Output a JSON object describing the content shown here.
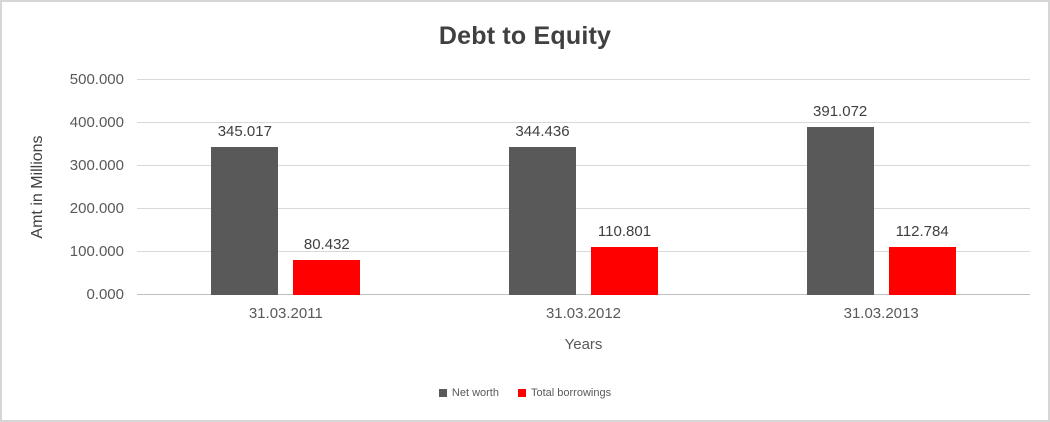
{
  "chart_data": {
    "type": "bar",
    "title": "Debt to Equity",
    "xlabel": "Years",
    "ylabel": "Amt in Millions",
    "categories": [
      "31.03.2011",
      "31.03.2012",
      "31.03.2013"
    ],
    "series": [
      {
        "name": "Net worth",
        "color": "#595959",
        "values": [
          345.017,
          344.436,
          391.072
        ],
        "value_labels": [
          "345.017",
          "344.436",
          "391.072"
        ]
      },
      {
        "name": "Total borrowings",
        "color": "#ff0000",
        "values": [
          80.432,
          110.801,
          112.784
        ],
        "value_labels": [
          "80.432",
          "110.801",
          "112.784"
        ]
      }
    ],
    "ylim": [
      0,
      500
    ],
    "yticks": [
      {
        "value": 0,
        "label": "0.000"
      },
      {
        "value": 100,
        "label": "100.000"
      },
      {
        "value": 200,
        "label": "200.000"
      },
      {
        "value": 300,
        "label": "300.000"
      },
      {
        "value": 400,
        "label": "400.000"
      },
      {
        "value": 500,
        "label": "500.000"
      }
    ],
    "grid": true,
    "legend_position": "bottom",
    "colors": {
      "title_text": "#404040",
      "axis_text": "#595959",
      "data_label_text": "#404040",
      "gridline": "#d9d9d9",
      "axis_line": "#bfbfbf",
      "chart_border": "#d6d6d6",
      "background": "#ffffff"
    }
  }
}
